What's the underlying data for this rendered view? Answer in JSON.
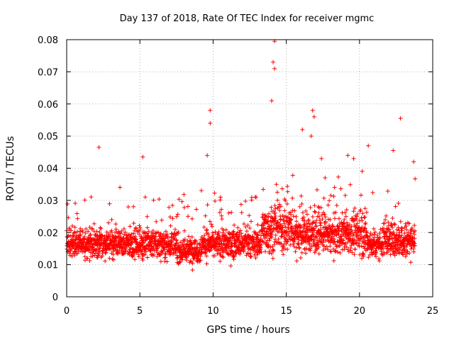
{
  "chart_data": {
    "type": "scatter",
    "title": "Day 137 of 2018, Rate Of TEC Index for receiver mgmc",
    "xlabel": "GPS time / hours",
    "ylabel": "ROTI / TECUs",
    "xlim": [
      0,
      25
    ],
    "ylim": [
      0,
      0.08
    ],
    "xticks": [
      0,
      5,
      10,
      15,
      20,
      25
    ],
    "xtick_labels": [
      "0",
      "5",
      "10",
      "15",
      "20",
      "25"
    ],
    "yticks": [
      0,
      0.01,
      0.02,
      0.03,
      0.04,
      0.05,
      0.06,
      0.07,
      0.08
    ],
    "ytick_labels": [
      "0",
      "0.01",
      "0.02",
      "0.03",
      "0.04",
      "0.05",
      "0.06",
      "0.07",
      "0.08"
    ],
    "grid": true,
    "marker": "plus",
    "color": "#ff0000",
    "x_range_of_data": [
      0,
      23.8
    ],
    "dense_band": [
      0.008,
      0.03
    ],
    "peak_points": [
      {
        "x": 14.2,
        "y": 0.0795
      },
      {
        "x": 14.1,
        "y": 0.073
      },
      {
        "x": 14.2,
        "y": 0.071
      },
      {
        "x": 14.0,
        "y": 0.061
      },
      {
        "x": 16.8,
        "y": 0.058
      },
      {
        "x": 16.9,
        "y": 0.056
      },
      {
        "x": 9.8,
        "y": 0.058
      },
      {
        "x": 9.8,
        "y": 0.054
      },
      {
        "x": 22.8,
        "y": 0.0555
      },
      {
        "x": 16.1,
        "y": 0.052
      },
      {
        "x": 16.7,
        "y": 0.05
      },
      {
        "x": 2.2,
        "y": 0.0465
      },
      {
        "x": 20.6,
        "y": 0.047
      },
      {
        "x": 22.3,
        "y": 0.0455
      },
      {
        "x": 5.2,
        "y": 0.0435
      },
      {
        "x": 9.6,
        "y": 0.044
      },
      {
        "x": 17.4,
        "y": 0.043
      },
      {
        "x": 19.2,
        "y": 0.044
      },
      {
        "x": 19.6,
        "y": 0.043
      },
      {
        "x": 23.7,
        "y": 0.042
      }
    ]
  }
}
